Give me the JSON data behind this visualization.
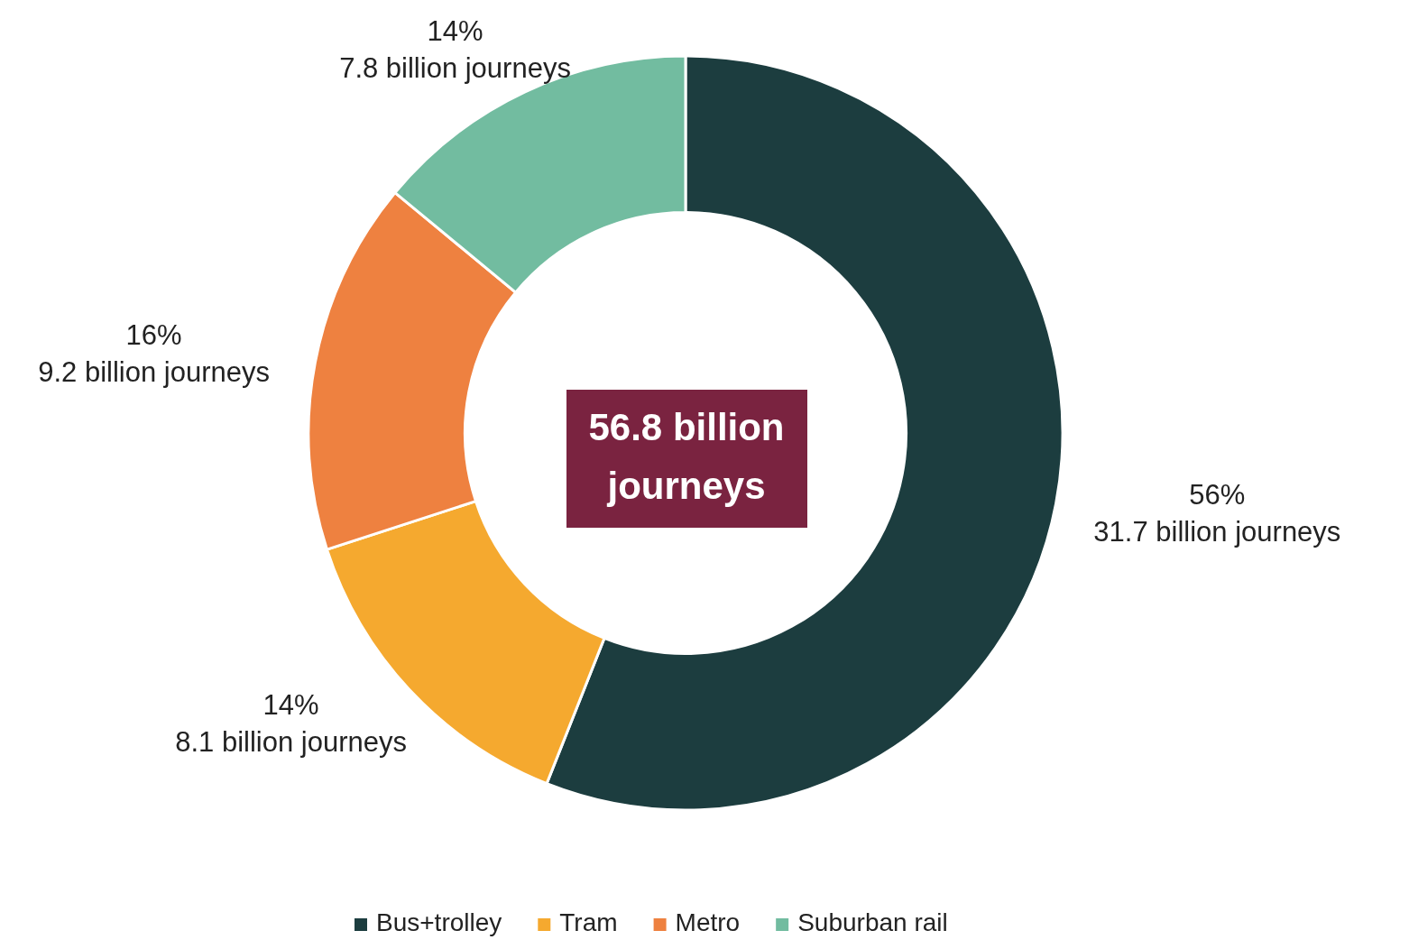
{
  "chart_data": {
    "type": "donut",
    "categories": [
      "Bus+trolley",
      "Tram",
      "Metro",
      "Suburban rail"
    ],
    "values": [
      56,
      14,
      16,
      14
    ],
    "colors": [
      "#1c3d3f",
      "#f5a92f",
      "#ee8140",
      "#72bca0"
    ],
    "value_labels": [
      "56%\n31.7 billion journeys",
      "14%\n8.1 billion journeys",
      "16%\n9.2 billion journeys",
      "14%\n7.8 billion journeys"
    ],
    "annotations": [
      "56.8 billion journeys"
    ],
    "legend": "bottom"
  }
}
